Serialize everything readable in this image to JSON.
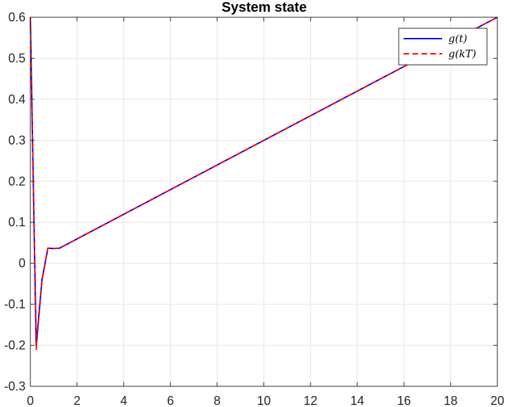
{
  "chart_data": {
    "type": "line",
    "title": "System state",
    "xlabel": "",
    "ylabel": "",
    "xlim": [
      0,
      20
    ],
    "ylim": [
      -0.3,
      0.6
    ],
    "xticks": [
      "0",
      "2",
      "4",
      "6",
      "8",
      "10",
      "12",
      "14",
      "16",
      "18",
      "20"
    ],
    "yticks": [
      "-0.3",
      "-0.2",
      "-0.1",
      "0",
      "0.1",
      "0.2",
      "0.3",
      "0.4",
      "0.5",
      "0.6"
    ],
    "grid": true,
    "legend_position": "top-right",
    "series": [
      {
        "name": "g(t)",
        "color": "#0000ff",
        "style": "solid",
        "x": [
          0,
          0.25,
          0.5,
          0.75,
          1.0,
          1.25,
          20
        ],
        "y": [
          0.6,
          -0.2,
          -0.04,
          0.037,
          0.036,
          0.037,
          0.6
        ]
      },
      {
        "name": "g(kT)",
        "color": "#ff0000",
        "style": "dashed",
        "x": [
          0,
          0.25,
          0.5,
          0.75,
          1.0,
          1.25,
          20
        ],
        "y": [
          0.6,
          -0.21,
          -0.04,
          0.037,
          0.036,
          0.037,
          0.6
        ]
      }
    ]
  }
}
